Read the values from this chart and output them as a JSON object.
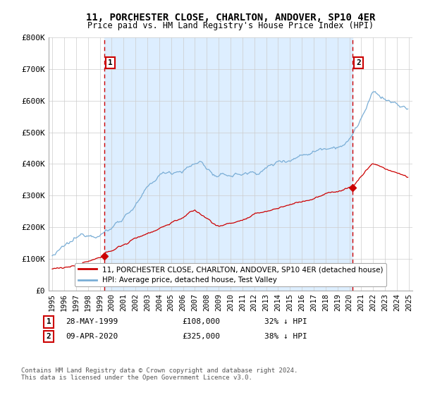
{
  "title": "11, PORCHESTER CLOSE, CHARLTON, ANDOVER, SP10 4ER",
  "subtitle": "Price paid vs. HM Land Registry's House Price Index (HPI)",
  "ylim": [
    0,
    800000
  ],
  "yticks": [
    0,
    100000,
    200000,
    300000,
    400000,
    500000,
    600000,
    700000,
    800000
  ],
  "ytick_labels": [
    "£0",
    "£100K",
    "£200K",
    "£300K",
    "£400K",
    "£500K",
    "£600K",
    "£700K",
    "£800K"
  ],
  "sale1_year": 1999.38,
  "sale1_price": 108000,
  "sale2_year": 2020.27,
  "sale2_price": 325000,
  "sale1_date": "28-MAY-1999",
  "sale1_price_str": "£108,000",
  "sale1_pct": "32% ↓ HPI",
  "sale2_date": "09-APR-2020",
  "sale2_price_str": "£325,000",
  "sale2_pct": "38% ↓ HPI",
  "legend_sale_label": "11, PORCHESTER CLOSE, CHARLTON, ANDOVER, SP10 4ER (detached house)",
  "legend_hpi_label": "HPI: Average price, detached house, Test Valley",
  "footer": "Contains HM Land Registry data © Crown copyright and database right 2024.\nThis data is licensed under the Open Government Licence v3.0.",
  "sale_color": "#cc0000",
  "hpi_color": "#7aaed6",
  "shade_color": "#ddeeff",
  "background_color": "#ffffff",
  "grid_color": "#cccccc",
  "title_fontsize": 10,
  "subtitle_fontsize": 8.5,
  "tick_fontsize": 8,
  "legend_fontsize": 7.5,
  "footer_fontsize": 6.5
}
